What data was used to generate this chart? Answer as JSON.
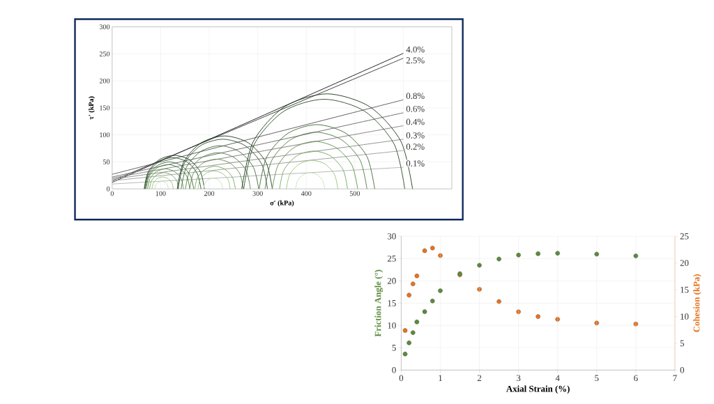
{
  "chart_data": [
    {
      "type": "line",
      "xlabel": "σ′ (kPa)",
      "ylabel": "τ′ (kPa)",
      "xlim": [
        0,
        700
      ],
      "ylim": [
        0,
        300
      ],
      "xticks": [
        0,
        100,
        200,
        300,
        400,
        500,
        {
          "value": 600,
          "label": null
        },
        {
          "value": 700,
          "label": null
        }
      ],
      "yticks": [
        0,
        50,
        100,
        150,
        200,
        250,
        300
      ],
      "grid": true,
      "series": [
        {
          "name": "4.0%",
          "color": "#111111",
          "x": [
            0,
            600
          ],
          "values": [
            12,
            251
          ]
        },
        {
          "name": "2.5%",
          "color": "#333333",
          "x": [
            0,
            600
          ],
          "values": [
            15,
            242
          ]
        },
        {
          "name": "0.8%",
          "color": "#555555",
          "x": [
            0,
            600
          ],
          "values": [
            27,
            165
          ]
        },
        {
          "name": "0.6%",
          "color": "#666666",
          "x": [
            0,
            600
          ],
          "values": [
            22,
            141
          ]
        },
        {
          "name": "0.4%",
          "color": "#7a7a7a",
          "x": [
            0,
            600
          ],
          "values": [
            20,
            117
          ]
        },
        {
          "name": "0.3%",
          "color": "#8a8a8a",
          "x": [
            0,
            600
          ],
          "values": [
            18,
            92
          ]
        },
        {
          "name": "0.2%",
          "color": "#9c9c9c",
          "x": [
            0,
            600
          ],
          "values": [
            15,
            71
          ]
        },
        {
          "name": "0.1%",
          "color": "#b0b0b0",
          "x": [
            0,
            600
          ],
          "values": [
            9,
            40
          ]
        },
        {
          "color": "#1e3a1e",
          "x": [
            190,
            182,
            159,
            128,
            97,
            74,
            66
          ],
          "values": [
            0,
            31,
            54,
            62,
            54,
            31,
            0
          ]
        },
        {
          "color": "#2d4d2a",
          "x": [
            183,
            175,
            154,
            125,
            96,
            75,
            67
          ],
          "values": [
            0,
            29,
            50,
            58,
            50,
            29,
            0
          ]
        },
        {
          "color": "#3f6a35",
          "x": [
            168,
            161,
            143,
            118,
            93,
            75,
            68
          ],
          "values": [
            0,
            25,
            43,
            50,
            43,
            25,
            0
          ]
        },
        {
          "color": "#4f7d40",
          "x": [
            160,
            154,
            137.5,
            115,
            92.5,
            76,
            70
          ],
          "values": [
            0,
            23,
            39,
            45,
            39,
            23,
            0
          ]
        },
        {
          "color": "#5e9148",
          "x": [
            147,
            142,
            128.5,
            110,
            91.5,
            78,
            73
          ],
          "values": [
            0,
            19,
            32,
            37,
            32,
            19,
            0
          ]
        },
        {
          "color": "#74a85a",
          "x": [
            137,
            133,
            122,
            107,
            92,
            81,
            77
          ],
          "values": [
            0,
            15,
            26,
            30,
            26,
            15,
            0
          ]
        },
        {
          "color": "#98c47e",
          "x": [
            126,
            123,
            115,
            104,
            93,
            85,
            82
          ],
          "values": [
            0,
            11,
            19,
            22,
            19,
            11,
            0
          ]
        },
        {
          "color": "#c6dfb5",
          "x": [
            116,
            114,
            109,
            102,
            95,
            90,
            88
          ],
          "values": [
            0,
            7,
            12,
            14,
            12,
            7,
            0
          ]
        },
        {
          "color": "#1e3a1e",
          "x": [
            330,
            317,
            281,
            232,
            183,
            147,
            134
          ],
          "values": [
            0,
            49,
            85,
            98,
            85,
            49,
            0
          ]
        },
        {
          "color": "#2d4d2a",
          "x": [
            320,
            308,
            274,
            228,
            182,
            148,
            136
          ],
          "values": [
            0,
            46,
            80,
            92,
            80,
            46,
            0
          ]
        },
        {
          "color": "#3f6a35",
          "x": [
            302,
            291,
            262,
            222,
            182,
            153,
            142
          ],
          "values": [
            0,
            40,
            69,
            80,
            69,
            40,
            0
          ]
        },
        {
          "color": "#4f7d40",
          "x": [
            285,
            276,
            251.5,
            218,
            184.5,
            160,
            151
          ],
          "values": [
            0,
            34,
            58,
            67,
            58,
            34,
            0
          ]
        },
        {
          "color": "#5e9148",
          "x": [
            270,
            263,
            242.5,
            215,
            187.5,
            167,
            160
          ],
          "values": [
            0,
            28,
            48,
            55,
            48,
            28,
            0
          ]
        },
        {
          "color": "#74a85a",
          "x": [
            254,
            248,
            233,
            212,
            191,
            176,
            170
          ],
          "values": [
            0,
            21,
            36,
            42,
            36,
            21,
            0
          ]
        },
        {
          "color": "#98c47e",
          "x": [
            243,
            239,
            226.5,
            210,
            193.5,
            181,
            177
          ],
          "values": [
            0,
            17,
            29,
            33,
            29,
            17,
            0
          ]
        },
        {
          "color": "#c6dfb5",
          "x": [
            228,
            225,
            218,
            208,
            198,
            191,
            188
          ],
          "values": [
            0,
            10,
            17,
            20,
            17,
            10,
            0
          ]
        },
        {
          "color": "#1e3a1e",
          "x": [
            619,
            595,
            531,
            443,
            355,
            291,
            267
          ],
          "values": [
            0,
            88,
            152,
            176,
            152,
            88,
            0
          ]
        },
        {
          "color": "#2d4d2a",
          "x": [
            603,
            581,
            520,
            437,
            354,
            293,
            271
          ],
          "values": [
            0,
            83,
            144,
            166,
            144,
            83,
            0
          ]
        },
        {
          "color": "#3f6a35",
          "x": [
            541,
            525,
            481.5,
            422,
            362.5,
            319,
            303
          ],
          "values": [
            0,
            60,
            103,
            119,
            103,
            60,
            0
          ]
        },
        {
          "color": "#4f7d40",
          "x": [
            525,
            511,
            472.5,
            420,
            367.5,
            329,
            315
          ],
          "values": [
            0,
            53,
            91,
            105,
            91,
            53,
            0
          ]
        },
        {
          "color": "#5e9148",
          "x": [
            506,
            494,
            462,
            418,
            374,
            342,
            330
          ],
          "values": [
            0,
            44,
            76,
            88,
            76,
            44,
            0
          ]
        },
        {
          "color": "#74a85a",
          "x": [
            485,
            476,
            450,
            415,
            380,
            354,
            345
          ],
          "values": [
            0,
            35,
            61,
            70,
            61,
            35,
            0
          ]
        },
        {
          "color": "#98c47e",
          "x": [
            465,
            458,
            438.5,
            412,
            385.5,
            366,
            359
          ],
          "values": [
            0,
            27,
            46,
            53,
            46,
            27,
            0
          ]
        },
        {
          "color": "#c6dfb5",
          "x": [
            438,
            434,
            423,
            408,
            393,
            382,
            378
          ],
          "values": [
            0,
            15,
            26,
            30,
            26,
            15,
            0
          ]
        }
      ]
    },
    {
      "type": "scatter",
      "xlabel": "Axial Strain (%)",
      "ylabel": "Friction Angle (°)",
      "y2label": "Cohesion (kPa)",
      "x": [
        0.1,
        0.2,
        0.3,
        0.4,
        0.6,
        0.8,
        1.0,
        1.5,
        2,
        2.5,
        3,
        3.5,
        4,
        5,
        6
      ],
      "xlim": [
        0,
        7
      ],
      "xticks": [
        0,
        1,
        2,
        3,
        4,
        5,
        6,
        7
      ],
      "ylim": [
        0,
        30
      ],
      "yticks": [
        0,
        5,
        10,
        15,
        20,
        25,
        30
      ],
      "y2lim": [
        0,
        25
      ],
      "y2ticks": [
        0,
        5,
        10,
        15,
        20,
        25
      ],
      "grid": true,
      "marker": "circle",
      "series": [
        {
          "color": "#5b8a3c",
          "values": [
            3.6,
            6.1,
            8.4,
            10.8,
            13.1,
            15.5,
            17.8,
            21.6,
            23.5,
            24.9,
            25.8,
            26.1,
            26.2,
            26.0,
            25.6
          ]
        },
        {
          "color": "#e8711c",
          "axis": "y2",
          "values": [
            7.4,
            14.0,
            16.1,
            17.6,
            22.3,
            22.8,
            21.4,
            17.8,
            15.1,
            12.8,
            10.9,
            10.0,
            9.5,
            8.8,
            8.6
          ]
        }
      ]
    }
  ]
}
